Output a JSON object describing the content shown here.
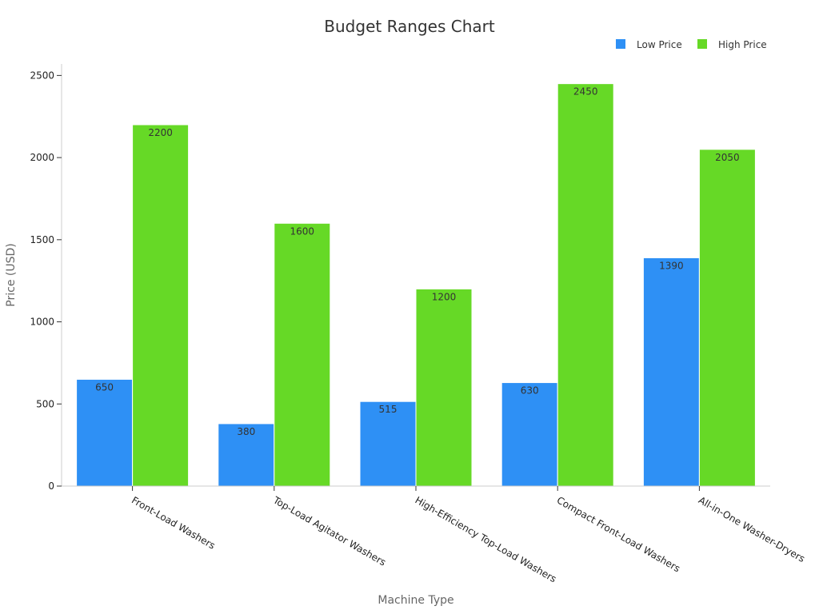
{
  "chart_data": {
    "type": "bar",
    "title": "Budget Ranges Chart",
    "xlabel": "Machine Type",
    "ylabel": "Price (USD)",
    "categories": [
      "Front-Load Washers",
      "Top-Load Agitator Washers",
      "High-Efficiency Top-Load Washers",
      "Compact Front-Load Washers",
      "All-in-One Washer-Dryers"
    ],
    "series": [
      {
        "name": "Low Price",
        "color": "#2e90f5",
        "values": [
          650,
          380,
          515,
          630,
          1390
        ]
      },
      {
        "name": "High Price",
        "color": "#66d926",
        "values": [
          2200,
          1600,
          1200,
          2450,
          2050
        ]
      }
    ],
    "ylim": [
      0,
      2570
    ],
    "yticks": [
      0,
      500,
      1000,
      1500,
      2000,
      2500
    ],
    "legend_position": "top-right",
    "grid": false
  }
}
